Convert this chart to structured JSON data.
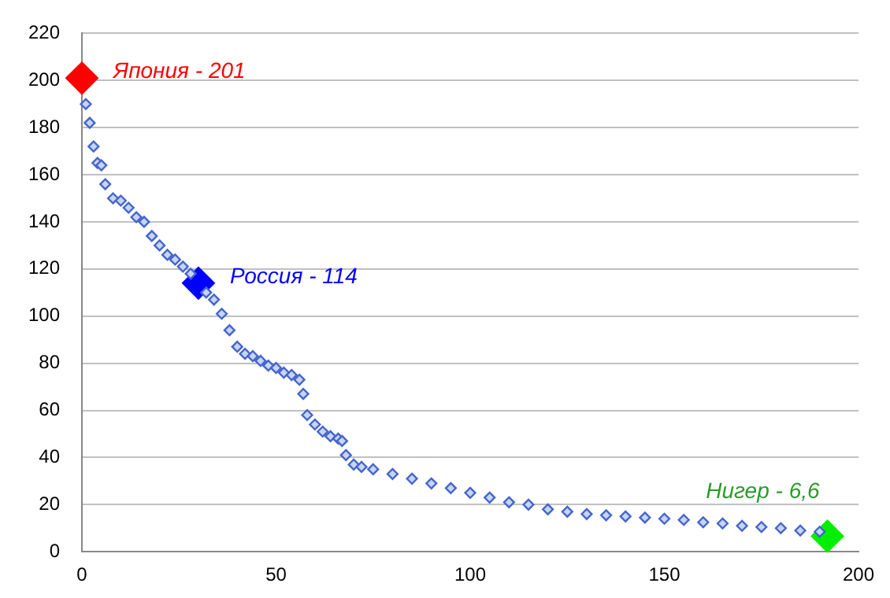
{
  "chart_data": {
    "type": "scatter",
    "marker": "diamond",
    "grid": "y",
    "xlim": [
      0,
      200
    ],
    "xticks": [
      0,
      50,
      100,
      150,
      200
    ],
    "ylim": [
      0,
      220
    ],
    "yticks": [
      0,
      20,
      40,
      60,
      80,
      100,
      120,
      140,
      160,
      180,
      200,
      220
    ],
    "series": [
      {
        "color": "#4466cc",
        "x": [
          1,
          2,
          3,
          4,
          5,
          6,
          8,
          10,
          12,
          14,
          16,
          18,
          20,
          22,
          24,
          26,
          28,
          32,
          34,
          36,
          38,
          40,
          42,
          44,
          46,
          48,
          50,
          52,
          54,
          56,
          57,
          58,
          60,
          62,
          64,
          66,
          67,
          68,
          70,
          72,
          75,
          80,
          85,
          90,
          95,
          100,
          105,
          110,
          115,
          120,
          125,
          130,
          135,
          140,
          145,
          150,
          155,
          160,
          165,
          170,
          175,
          180,
          185,
          190
        ],
        "values": [
          190,
          182,
          172,
          165,
          164,
          156,
          150,
          149,
          146,
          142,
          140,
          134,
          130,
          126,
          124,
          121,
          118,
          110,
          107,
          101,
          94,
          87,
          84,
          83,
          81,
          79,
          78,
          76,
          75,
          73,
          67,
          58,
          54,
          51,
          49,
          48,
          47,
          41,
          37,
          36,
          35,
          33,
          31,
          29,
          27,
          25,
          23,
          21,
          20,
          18,
          17,
          16,
          15.5,
          15,
          14.5,
          14,
          13.5,
          12.5,
          12,
          11,
          10.5,
          10,
          9,
          8.5
        ]
      },
      {
        "color": "#ff0000",
        "x": [
          0
        ],
        "values": [
          201
        ]
      },
      {
        "color": "#0000ff",
        "x": [
          30
        ],
        "values": [
          114
        ]
      },
      {
        "color": "#00ee00",
        "x": [
          192
        ],
        "values": [
          6.6
        ]
      }
    ],
    "annotations": [
      {
        "text": "Япония - 201",
        "x": 0,
        "y": 201
      },
      {
        "text": "Россия - 114",
        "x": 30,
        "y": 114
      },
      {
        "text": "Нигер - 6,6",
        "x": 192,
        "y": 6.6
      }
    ]
  }
}
